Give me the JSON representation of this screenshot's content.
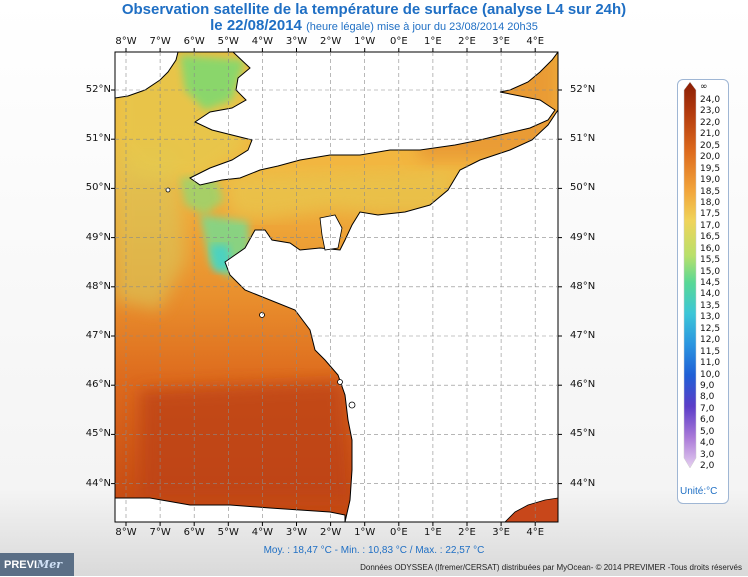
{
  "title_line1": "Observation satellite de la température de surface (analyse L4 sur 24h)",
  "title_date": "le 22/08/2014",
  "title_update": "(heure légale) mise à jour du 23/08/2014 20h35",
  "lon_labels": [
    "8°W",
    "7°W",
    "6°W",
    "5°W",
    "4°W",
    "3°W",
    "2°W",
    "1°W",
    "0°E",
    "1°E",
    "2°E",
    "3°E",
    "4°E"
  ],
  "lat_labels": [
    "52°N",
    "51°N",
    "50°N",
    "49°N",
    "48°N",
    "47°N",
    "46°N",
    "45°N",
    "44°N"
  ],
  "legend": {
    "top_symbol": "∞",
    "values": [
      "24,0",
      "23,0",
      "22,0",
      "21,0",
      "20,5",
      "20,0",
      "19,5",
      "19,0",
      "18,5",
      "18,0",
      "17,5",
      "17,0",
      "16,5",
      "16,0",
      "15,5",
      "15,0",
      "14,5",
      "14,0",
      "13,5",
      "13,0",
      "12,5",
      "12,0",
      "11,5",
      "11,0",
      "10,0",
      "9,0",
      "8,0",
      "7,0",
      "6,0",
      "5,0",
      "4,0",
      "3,0",
      "2,0"
    ],
    "unit": "Unité:°C"
  },
  "stats": "Moy. : 18,47 °C   -   Min. : 10,83 °C / Max. : 22,57 °C",
  "credits": "Données ODYSSEA (Ifremer/CERSAT) distribuées par MyOcean- © 2014 PREVIMER -Tous droits réservés",
  "logo": {
    "prefix": "PREVI",
    "suffix": "Mer"
  },
  "colors": {
    "accent": "#1f6fc4",
    "sst_warm": "#c44a12",
    "sst_orange": "#e87a25",
    "sst_yellow": "#e9c44a",
    "sst_green": "#8fd86a",
    "sst_cyan": "#4ad6c9",
    "land": "#ffffff"
  }
}
